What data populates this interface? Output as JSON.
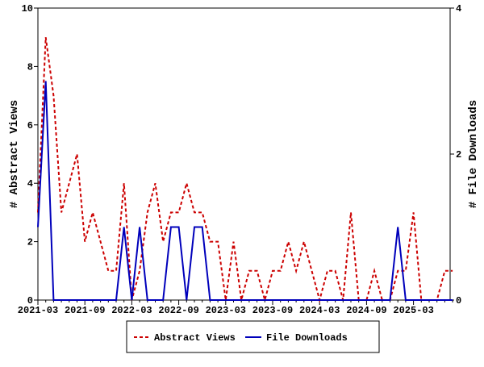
{
  "chart_data": {
    "type": "line",
    "title": "",
    "xlabel": "",
    "ylabel": "# Abstract Views",
    "y2label": "# File Downloads",
    "ylim": [
      0,
      10
    ],
    "y2lim": [
      0,
      4
    ],
    "yticks": [
      "0",
      "2",
      "4",
      "6",
      "8",
      "10"
    ],
    "y2ticks": [
      "0",
      "2",
      "4"
    ],
    "xtick_labels": [
      "2021-03",
      "2021-09",
      "2022-03",
      "2022-09",
      "2023-03",
      "2023-09",
      "2024-03",
      "2024-09",
      "2025-03"
    ],
    "x_start": "2021-03",
    "x_end": "2025-08",
    "legend_position": "bottom",
    "series": [
      {
        "name": "Abstract Views",
        "axis": "left",
        "color": "#cc0000",
        "style": "dashed",
        "values": [
          3,
          9,
          7,
          3,
          4,
          5,
          2,
          3,
          2,
          1,
          1,
          4,
          0,
          1,
          3,
          4,
          2,
          3,
          3,
          4,
          3,
          3,
          2,
          2,
          0,
          2,
          0,
          1,
          1,
          0,
          1,
          1,
          2,
          1,
          2,
          1,
          0,
          1,
          1,
          0,
          3,
          0,
          0,
          1,
          0,
          0,
          1,
          1,
          3,
          0,
          0,
          0,
          1,
          1
        ]
      },
      {
        "name": "File Downloads",
        "axis": "right",
        "color": "#0000bb",
        "style": "solid",
        "values": [
          1,
          3,
          0,
          0,
          0,
          0,
          0,
          0,
          0,
          0,
          0,
          1,
          0,
          1,
          0,
          0,
          0,
          1,
          1,
          0,
          1,
          1,
          0,
          0,
          0,
          0,
          0,
          0,
          0,
          0,
          0,
          0,
          0,
          0,
          0,
          0,
          0,
          0,
          0,
          0,
          0,
          0,
          0,
          0,
          0,
          0,
          1,
          0,
          0,
          0,
          0,
          0,
          0,
          0
        ]
      }
    ]
  }
}
